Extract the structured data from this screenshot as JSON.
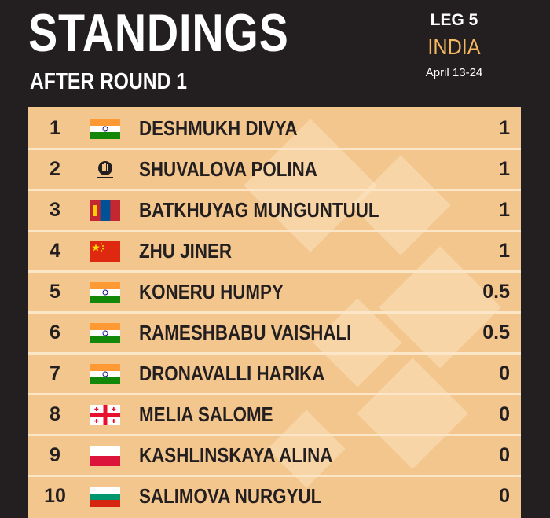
{
  "header": {
    "title": "STANDINGS",
    "subtitle": "AFTER ROUND 1",
    "leg": "LEG 5",
    "country": "INDIA",
    "dates": "April 13-24"
  },
  "colors": {
    "background": "#231f20",
    "table": "#f3c68d",
    "separator": "#fbe6c8",
    "accent": "#f4b860"
  },
  "standings": [
    {
      "rank": "1",
      "flag": "india-flag-icon",
      "name": "DESHMUKH DIVYA",
      "score": "1"
    },
    {
      "rank": "2",
      "flag": "fide-logo-icon",
      "name": "SHUVALOVA POLINA",
      "score": "1"
    },
    {
      "rank": "3",
      "flag": "mongolia-flag-icon",
      "name": "BATKHUYAG MUNGUNTUUL",
      "score": "1"
    },
    {
      "rank": "4",
      "flag": "china-flag-icon",
      "name": "ZHU JINER",
      "score": "1"
    },
    {
      "rank": "5",
      "flag": "india-flag-icon",
      "name": "KONERU HUMPY",
      "score": "0.5"
    },
    {
      "rank": "6",
      "flag": "india-flag-icon",
      "name": "RAMESHBABU VAISHALI",
      "score": "0.5"
    },
    {
      "rank": "7",
      "flag": "india-flag-icon",
      "name": "DRONAVALLI HARIKA",
      "score": "0"
    },
    {
      "rank": "8",
      "flag": "georgia-flag-icon",
      "name": "MELIA SALOME",
      "score": "0"
    },
    {
      "rank": "9",
      "flag": "poland-flag-icon",
      "name": "KASHLINSKAYA ALINA",
      "score": "0"
    },
    {
      "rank": "10",
      "flag": "bulgaria-flag-icon",
      "name": "SALIMOVA NURGYUL",
      "score": "0"
    }
  ]
}
